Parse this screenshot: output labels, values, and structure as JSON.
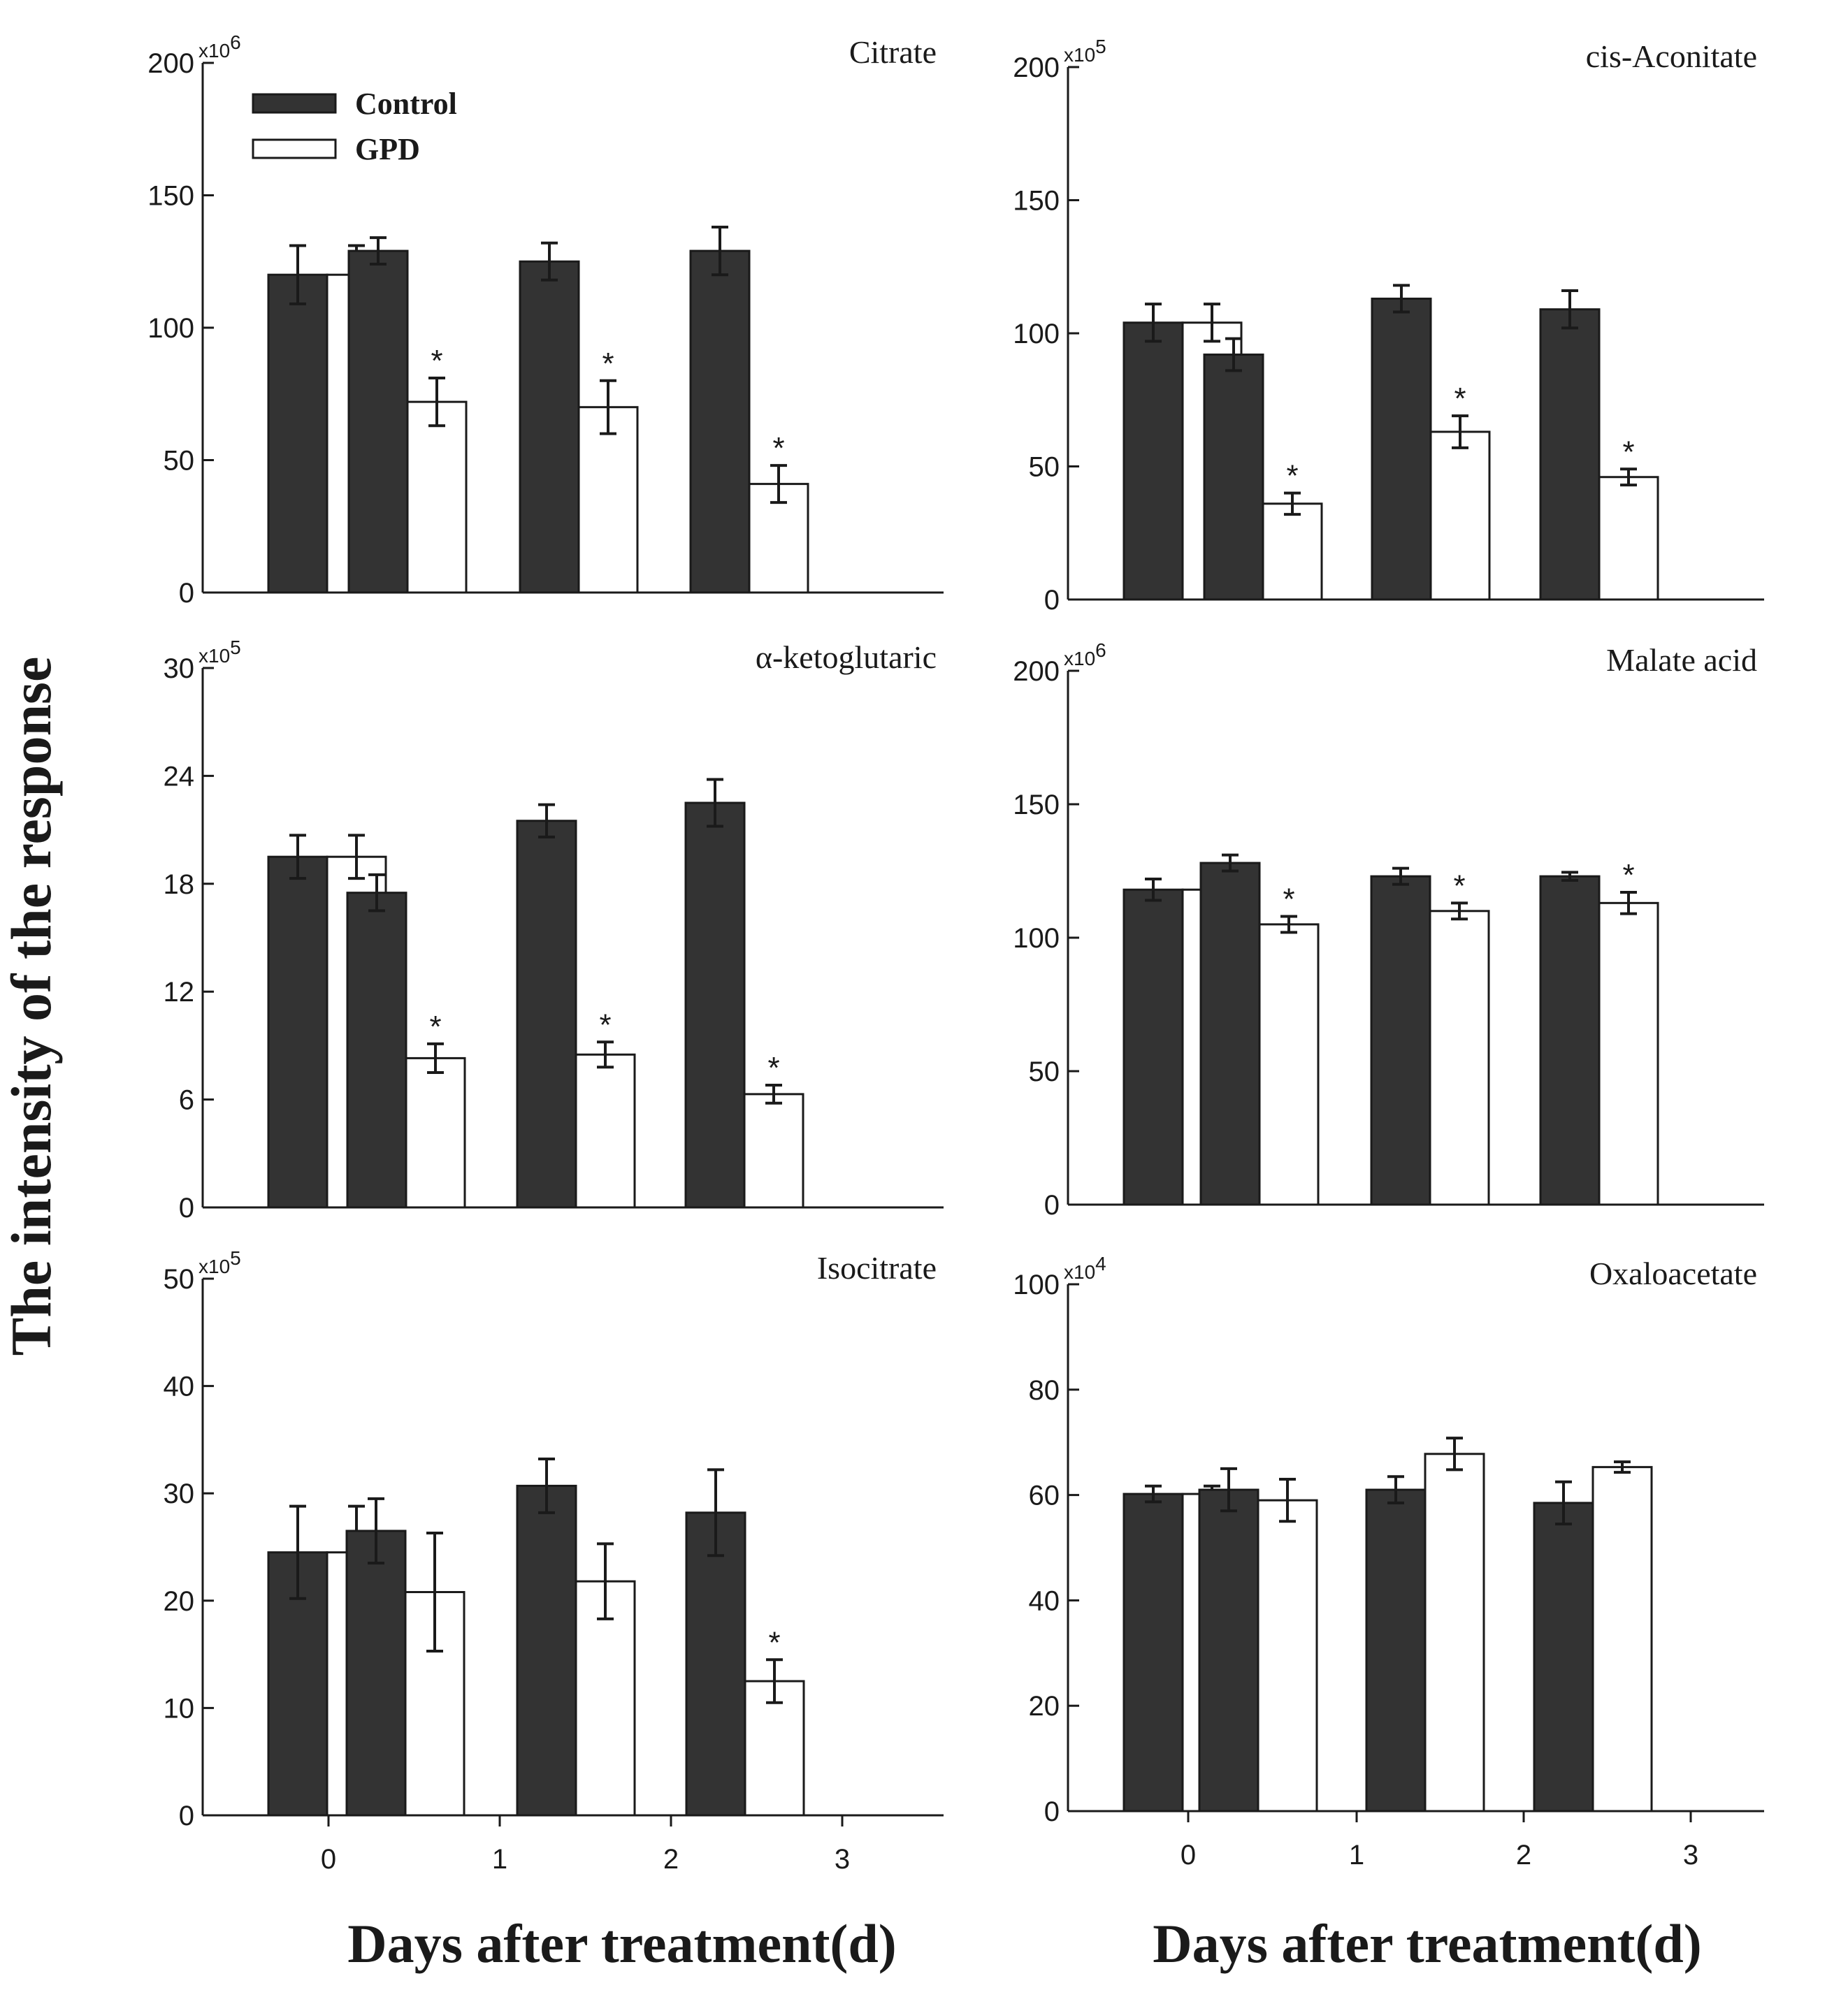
{
  "figure": {
    "ylabel": "The intensity of the response",
    "xlabels": [
      "Days after treatment(d)",
      "Days after treatment(d)"
    ],
    "legend": {
      "position": "top-left",
      "items": [
        {
          "name": "Control",
          "fill": "#333333"
        },
        {
          "name": "GPD",
          "fill": "#ffffff"
        }
      ]
    },
    "colors": {
      "control": "#333333",
      "gpd": "#ffffff",
      "axis": "#1a1a1a"
    }
  },
  "chart_data": [
    {
      "type": "bar",
      "title": "Citrate",
      "multiplier": "x10",
      "multiplier_exp": "6",
      "categories": [
        "0",
        "1",
        "2",
        "3"
      ],
      "ylim": [
        0,
        200
      ],
      "yticks": [
        0,
        50,
        100,
        150,
        200
      ],
      "show_xticks": false,
      "grid": false,
      "series": [
        {
          "name": "Control",
          "values": [
            120,
            129,
            125,
            129
          ],
          "errors": [
            11,
            5,
            7,
            9
          ]
        },
        {
          "name": "GPD",
          "values": [
            120,
            72,
            70,
            41
          ],
          "errors": [
            11,
            9,
            10,
            7
          ],
          "significant": [
            false,
            true,
            true,
            true
          ]
        }
      ]
    },
    {
      "type": "bar",
      "title": "cis-Aconitate",
      "multiplier": "x10",
      "multiplier_exp": "5",
      "categories": [
        "0",
        "1",
        "2",
        "3"
      ],
      "ylim": [
        0,
        200
      ],
      "yticks": [
        0,
        50,
        100,
        150,
        200
      ],
      "show_xticks": false,
      "grid": false,
      "series": [
        {
          "name": "Control",
          "values": [
            104,
            92,
            113,
            109
          ],
          "errors": [
            7,
            6,
            5,
            7
          ]
        },
        {
          "name": "GPD",
          "values": [
            104,
            36,
            63,
            46
          ],
          "errors": [
            7,
            4,
            6,
            3
          ],
          "significant": [
            false,
            true,
            true,
            true
          ]
        }
      ]
    },
    {
      "type": "bar",
      "title": "α-ketoglutaric",
      "multiplier": "x10",
      "multiplier_exp": "5",
      "categories": [
        "0",
        "1",
        "2",
        "3"
      ],
      "ylim": [
        0,
        30
      ],
      "yticks": [
        0,
        6,
        12,
        18,
        24,
        30
      ],
      "show_xticks": false,
      "grid": false,
      "series": [
        {
          "name": "Control",
          "values": [
            19.5,
            17.5,
            21.5,
            22.5
          ],
          "errors": [
            1.2,
            1,
            0.9,
            1.3
          ]
        },
        {
          "name": "GPD",
          "values": [
            19.5,
            8.3,
            8.5,
            6.3
          ],
          "errors": [
            1.2,
            0.8,
            0.7,
            0.5
          ],
          "significant": [
            false,
            true,
            true,
            true
          ]
        }
      ]
    },
    {
      "type": "bar",
      "title": "Malate acid",
      "multiplier": "x10",
      "multiplier_exp": "6",
      "categories": [
        "0",
        "1",
        "2",
        "3"
      ],
      "ylim": [
        0,
        200
      ],
      "yticks": [
        0,
        50,
        100,
        150,
        200
      ],
      "show_xticks": false,
      "grid": false,
      "series": [
        {
          "name": "Control",
          "values": [
            118,
            128,
            123,
            123
          ],
          "errors": [
            4,
            3,
            3,
            1.5
          ]
        },
        {
          "name": "GPD",
          "values": [
            118,
            105,
            110,
            113
          ],
          "errors": [
            4,
            3,
            3,
            4
          ],
          "significant": [
            false,
            true,
            true,
            true
          ]
        }
      ]
    },
    {
      "type": "bar",
      "title": "Isocitrate",
      "multiplier": "x10",
      "multiplier_exp": "5",
      "categories": [
        "0",
        "1",
        "2",
        "3"
      ],
      "ylim": [
        0,
        50
      ],
      "yticks": [
        0,
        10,
        20,
        30,
        40,
        50
      ],
      "show_xticks": true,
      "grid": false,
      "series": [
        {
          "name": "Control",
          "values": [
            24.5,
            26.5,
            30.7,
            28.2
          ],
          "errors": [
            4.3,
            3,
            2.5,
            4
          ]
        },
        {
          "name": "GPD",
          "values": [
            24.5,
            20.8,
            21.8,
            12.5
          ],
          "errors": [
            4.3,
            5.5,
            3.5,
            2
          ],
          "significant": [
            false,
            false,
            false,
            true
          ]
        }
      ]
    },
    {
      "type": "bar",
      "title": "Oxaloacetate",
      "multiplier": "x10",
      "multiplier_exp": "4",
      "categories": [
        "0",
        "1",
        "2",
        "3"
      ],
      "ylim": [
        0,
        100
      ],
      "yticks": [
        0,
        20,
        40,
        60,
        80,
        100
      ],
      "show_xticks": true,
      "grid": false,
      "series": [
        {
          "name": "Control",
          "values": [
            60.2,
            61,
            61,
            58.5
          ],
          "errors": [
            1.5,
            4,
            2.5,
            4
          ]
        },
        {
          "name": "GPD",
          "values": [
            60.2,
            59,
            67.8,
            65.3
          ],
          "errors": [
            1.5,
            4,
            3,
            1
          ],
          "significant": [
            false,
            false,
            false,
            false
          ]
        }
      ]
    }
  ]
}
